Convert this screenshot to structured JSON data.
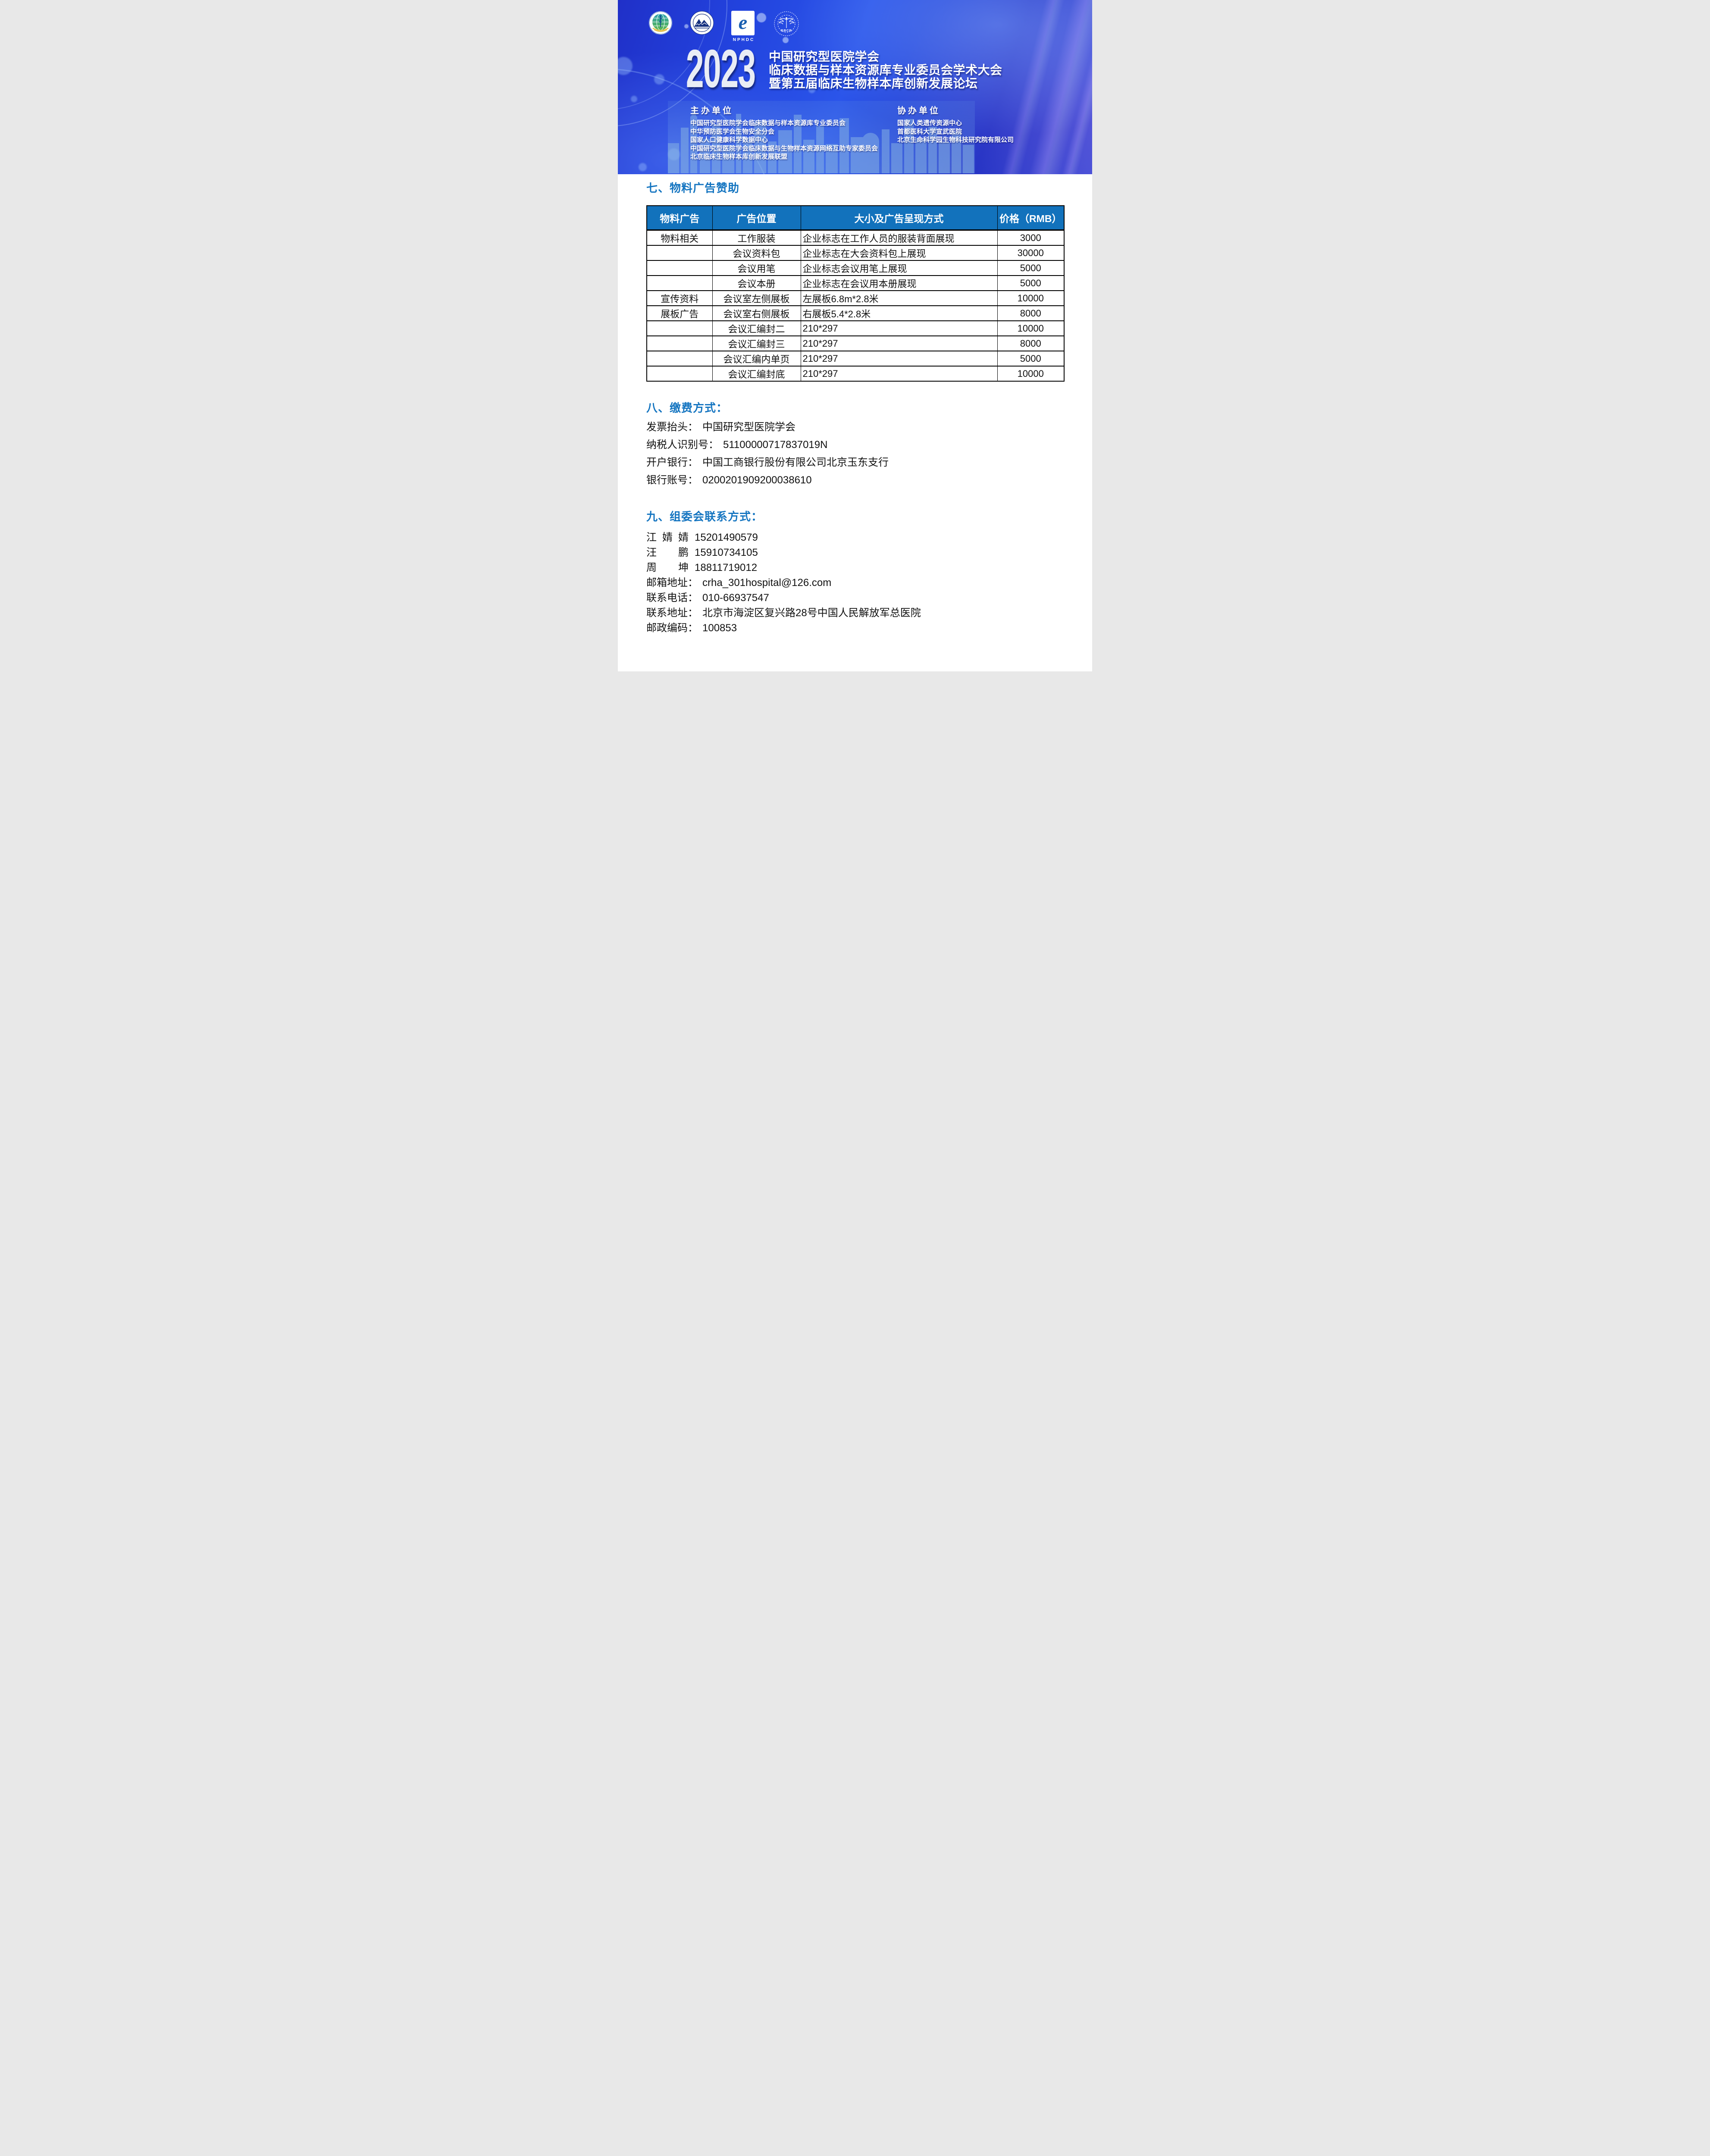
{
  "banner": {
    "year": "2023",
    "title_lines": [
      "中国研究型医院学会",
      "临床数据与样本资源库专业委员会学术大会",
      "暨第五届临床生物样本库创新发展论坛"
    ],
    "logos": {
      "crha_icon": "crha-emblem",
      "cpma_icon": "cpma-emblem",
      "nphdc_label": "NPHDC",
      "bbcr_label": "BBCR"
    },
    "hosts": {
      "heading": "主办单位",
      "items": [
        "中国研究型医院学会临床数据与样本资源库专业委员会",
        "中华预防医学会生物安全分会",
        "国家人口健康科学数据中心",
        "中国研究型医院学会临床数据与生物样本资源网络互助专家委员会",
        "北京临床生物样本库创新发展联盟"
      ]
    },
    "coorgs": {
      "heading": "协办单位",
      "items": [
        "国家人类遗传资源中心",
        "首都医科大学宣武医院",
        "北京生命科学园生物科技研究院有限公司"
      ]
    }
  },
  "sections": {
    "materials": {
      "title": "七、物料广告赞助",
      "table": {
        "headers": [
          "物料广告",
          "广告位置",
          "大小及广告呈现方式",
          "价格（RMB）"
        ],
        "rows": [
          [
            "物料相关",
            "工作服装",
            "企业标志在工作人员的服装背面展现",
            "3000"
          ],
          [
            "",
            "会议资料包",
            "企业标志在大会资料包上展现",
            "30000"
          ],
          [
            "",
            "会议用笔",
            "企业标志会议用笔上展现",
            "5000"
          ],
          [
            "",
            "会议本册",
            "企业标志在会议用本册展现",
            "5000"
          ],
          [
            "宣传资料",
            "会议室左侧展板",
            "左展板6.8m*2.8米",
            "10000"
          ],
          [
            "展板广告",
            "会议室右侧展板",
            "右展板5.4*2.8米",
            "8000"
          ],
          [
            "",
            "会议汇编封二",
            "210*297",
            "10000"
          ],
          [
            "",
            "会议汇编封三",
            "210*297",
            "8000"
          ],
          [
            "",
            "会议汇编内单页",
            "210*297",
            "5000"
          ],
          [
            "",
            "会议汇编封底",
            "210*297",
            "10000"
          ]
        ]
      }
    },
    "payment": {
      "title": "八、缴费方式：",
      "lines": [
        {
          "label": "发票抬头：",
          "value": "中国研究型医院学会"
        },
        {
          "label": "纳税人识别号：",
          "value": "51100000717837019N"
        },
        {
          "label": "开户银行：",
          "value": "中国工商银行股份有限公司北京玉东支行"
        },
        {
          "label": "银行账号：",
          "value": "0200201909200038610"
        }
      ]
    },
    "contact": {
      "title": "九、组委会联系方式：",
      "people": [
        {
          "name": "江婧婧",
          "phone": "15201490579"
        },
        {
          "name": "汪鹏",
          "phone": "15910734105"
        },
        {
          "name": "周坤",
          "phone": "18811719012"
        }
      ],
      "lines": [
        {
          "label": "邮箱地址：",
          "value": "crha_301hospital@126.com"
        },
        {
          "label": "联系电话：",
          "value": "010-66937547"
        },
        {
          "label": "联系地址：",
          "value": "北京市海淀区复兴路28号中国人民解放军总医院"
        },
        {
          "label": "邮政编码：",
          "value": "100853"
        }
      ]
    }
  },
  "colors": {
    "accent_blue": "#1374c0",
    "table_header_blue": "#1272bc",
    "banner_blue": "#2243de",
    "banner_text": "#ffffff",
    "text_black": "#111111",
    "logo_navy": "#15307f",
    "logo_teal": "#2ba3b0",
    "logo_green": "#5cb54b",
    "wheat_gold": "#e6c14d"
  }
}
